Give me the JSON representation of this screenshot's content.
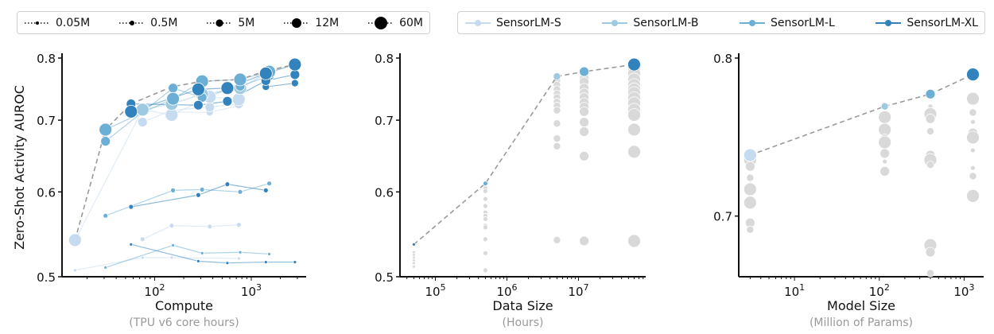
{
  "legend_size": {
    "title": "",
    "items": [
      {
        "label": "0.05M",
        "radius_key": "0.05M"
      },
      {
        "label": "0.5M",
        "radius_key": "0.5M"
      },
      {
        "label": "5M",
        "radius_key": "5M"
      },
      {
        "label": "12M",
        "radius_key": "12M"
      },
      {
        "label": "60M",
        "radius_key": "60M"
      }
    ]
  },
  "legend_model": {
    "items": [
      {
        "label": "SensorLM-S",
        "model": "S"
      },
      {
        "label": "SensorLM-B",
        "model": "B"
      },
      {
        "label": "SensorLM-L",
        "model": "L"
      },
      {
        "label": "SensorLM-XL",
        "model": "XL"
      }
    ]
  },
  "colors": {
    "S": "#c6dbef",
    "B": "#9ecae1",
    "L": "#6baed6",
    "XL": "#3182bd",
    "gray": "#d9d9d9",
    "frontier": "#9a9a9a"
  },
  "chart_data": [
    {
      "type": "scatter",
      "ylabel": "Zero-Shot Activity AUROC",
      "xlabel": "Compute",
      "xlabel_sub": "(TPU v6 core hours)",
      "xscale": "log",
      "yscale": "log",
      "xlim": [
        11,
        3700
      ],
      "ylim": [
        0.5,
        0.8
      ],
      "x_ticks": [
        {
          "base": "10",
          "exp": "2",
          "value": 100
        },
        {
          "base": "10",
          "exp": "3",
          "value": 1000
        }
      ],
      "y_ticks": [
        "0.5",
        "0.6",
        "0.7",
        "0.8"
      ],
      "grid": false,
      "frontier": [
        [
          15,
          0.541
        ],
        [
          31,
          0.686
        ],
        [
          57,
          0.725
        ],
        [
          150,
          0.752
        ],
        [
          310,
          0.761
        ],
        [
          768,
          0.764
        ],
        [
          1416,
          0.778
        ],
        [
          2830,
          0.789
        ]
      ],
      "series": [
        {
          "model": "S",
          "data": "0.05M",
          "points": [
            [
              15,
              0.507
            ],
            [
              75,
              0.521
            ],
            [
              150,
              0.521
            ],
            [
              743,
              0.52
            ]
          ]
        },
        {
          "model": "S",
          "data": "0.5M",
          "points": [
            [
              75,
              0.542
            ],
            [
              150,
              0.558
            ],
            [
              372,
              0.557
            ],
            [
              743,
              0.559
            ]
          ]
        },
        {
          "model": "L",
          "data": "0.05M",
          "points": [
            [
              31,
              0.51
            ],
            [
              155,
              0.535
            ],
            [
              310,
              0.526
            ],
            [
              768,
              0.527
            ],
            [
              1535,
              0.525
            ]
          ]
        },
        {
          "model": "XL",
          "data": "0.05M",
          "points": [
            [
              57,
              0.536
            ],
            [
              283,
              0.517
            ],
            [
              566,
              0.515
            ],
            [
              1416,
              0.516
            ],
            [
              2830,
              0.516
            ]
          ]
        },
        {
          "model": "L",
          "data": "0.5M",
          "points": [
            [
              31,
              0.57
            ],
            [
              155,
              0.602
            ],
            [
              310,
              0.603
            ],
            [
              768,
              0.6
            ],
            [
              1535,
              0.611
            ]
          ]
        },
        {
          "model": "XL",
          "data": "0.5M",
          "points": [
            [
              57,
              0.581
            ],
            [
              283,
              0.596
            ],
            [
              566,
              0.61
            ],
            [
              1416,
              0.602
            ]
          ]
        },
        {
          "model": "S",
          "data": "5M",
          "points": [
            [
              150,
              0.712
            ],
            [
              372,
              0.712
            ],
            [
              743,
              0.722
            ]
          ]
        },
        {
          "model": "S",
          "data": "12M",
          "points": [
            [
              75,
              0.697
            ],
            [
              150,
              0.715
            ],
            [
              372,
              0.72
            ],
            [
              743,
              0.725
            ]
          ]
        },
        {
          "model": "S",
          "data": "60M",
          "points": [
            [
              15,
              0.541
            ],
            [
              75,
              0.716
            ],
            [
              150,
              0.708
            ],
            [
              372,
              0.736
            ],
            [
              743,
              0.732
            ]
          ]
        },
        {
          "model": "B",
          "data": "60M",
          "points": [
            [
              75,
              0.716
            ],
            [
              150,
              0.725
            ],
            [
              310,
              0.74
            ],
            [
              768,
              0.75
            ],
            [
              1535,
              0.777
            ]
          ]
        },
        {
          "model": "L",
          "data": "12M",
          "points": [
            [
              31,
              0.669
            ],
            [
              155,
              0.75
            ],
            [
              310,
              0.735
            ],
            [
              768,
              0.753
            ],
            [
              1535,
              0.77
            ]
          ]
        },
        {
          "model": "L",
          "data": "60M",
          "points": [
            [
              31,
              0.686
            ],
            [
              155,
              0.733
            ],
            [
              310,
              0.761
            ],
            [
              768,
              0.764
            ],
            [
              1535,
              0.777
            ]
          ]
        },
        {
          "model": "XL",
          "data": "5M",
          "points": [
            [
              1416,
              0.752
            ],
            [
              2830,
              0.758
            ]
          ]
        },
        {
          "model": "XL",
          "data": "12M",
          "points": [
            [
              57,
              0.725
            ],
            [
              283,
              0.723
            ],
            [
              566,
              0.729
            ],
            [
              1416,
              0.762
            ],
            [
              2830,
              0.772
            ]
          ]
        },
        {
          "model": "XL",
          "data": "60M",
          "points": [
            [
              57,
              0.713
            ],
            [
              283,
              0.748
            ],
            [
              566,
              0.75
            ],
            [
              1416,
              0.774
            ],
            [
              2830,
              0.789
            ]
          ]
        }
      ]
    },
    {
      "type": "scatter",
      "xlabel": "Data Size",
      "xlabel_sub": "(Hours)",
      "xscale": "log",
      "yscale": "log",
      "xlim": [
        32000,
        87000000
      ],
      "ylim": [
        0.5,
        0.8
      ],
      "x_ticks": [
        {
          "base": "10",
          "exp": "5",
          "value": 100000
        },
        {
          "base": "10",
          "exp": "6",
          "value": 1000000
        },
        {
          "base": "10",
          "exp": "7",
          "value": 10000000
        }
      ],
      "y_ticks": [
        "0.5",
        "0.6",
        "0.7",
        "0.8"
      ],
      "grid": false,
      "frontier": [
        {
          "x": 50000,
          "y": 0.536,
          "model": "XL",
          "data": "0.05M"
        },
        {
          "x": 500000,
          "y": 0.611,
          "model": "L",
          "data": "0.5M"
        },
        {
          "x": 5000000,
          "y": 0.769,
          "model": "B",
          "data": "5M"
        },
        {
          "x": 12000000,
          "y": 0.777,
          "model": "L",
          "data": "12M"
        },
        {
          "x": 60000000,
          "y": 0.789,
          "model": "XL",
          "data": "60M"
        }
      ],
      "others": [
        {
          "x": 50000,
          "data": "0.05M",
          "values": [
            0.527,
            0.524,
            0.521,
            0.518,
            0.515,
            0.511
          ]
        },
        {
          "x": 500000,
          "data": "0.5M",
          "values": [
            0.605,
            0.601,
            0.591,
            0.582,
            0.574,
            0.57,
            0.566,
            0.558,
            0.556,
            0.542,
            0.526,
            0.507
          ]
        },
        {
          "x": 5000000,
          "data": "5M",
          "values": [
            0.762,
            0.755,
            0.748,
            0.741,
            0.735,
            0.728,
            0.722,
            0.715,
            0.695,
            0.673,
            0.662,
            0.541
          ]
        },
        {
          "x": 12000000,
          "data": "12M",
          "values": [
            0.772,
            0.766,
            0.76,
            0.75,
            0.742,
            0.735,
            0.727,
            0.72,
            0.713,
            0.697,
            0.683,
            0.648,
            0.54
          ]
        },
        {
          "x": 60000000,
          "data": "60M",
          "values": [
            0.78,
            0.774,
            0.764,
            0.755,
            0.748,
            0.742,
            0.734,
            0.726,
            0.716,
            0.708,
            0.686,
            0.654,
            0.54
          ]
        }
      ]
    },
    {
      "type": "scatter",
      "xlabel": "Model Size",
      "xlabel_sub": "(Million of Params)",
      "xscale": "log",
      "yscale": "log",
      "xlim": [
        2.2,
        1700
      ],
      "ylim": [
        0.665,
        0.8
      ],
      "x_ticks": [
        {
          "base": "10",
          "exp": "1",
          "value": 10
        },
        {
          "base": "10",
          "exp": "2",
          "value": 100
        },
        {
          "base": "10",
          "exp": "3",
          "value": 1000
        }
      ],
      "y_ticks": [
        "0.7",
        "0.8"
      ],
      "grid": false,
      "frontier": [
        {
          "x": 3,
          "y": 0.737,
          "model": "S",
          "data": "60M"
        },
        {
          "x": 116,
          "y": 0.768,
          "model": "B",
          "data": "5M"
        },
        {
          "x": 400,
          "y": 0.776,
          "model": "L",
          "data": "12M"
        },
        {
          "x": 1270,
          "y": 0.789,
          "model": "XL",
          "data": "60M"
        }
      ],
      "others": [
        {
          "x": 3,
          "values": [
            0.734,
            0.73,
            0.723,
            0.719,
            0.716,
            0.708,
            0.696,
            0.692
          ],
          "data": [
            "60M",
            "12M",
            "5M",
            "0.5M",
            "60M",
            "60M",
            "12M",
            "5M"
          ]
        },
        {
          "x": 116,
          "values": [
            0.761,
            0.754,
            0.753,
            0.748,
            0.745,
            0.738,
            0.733,
            0.727
          ],
          "data": [
            "60M",
            "12M",
            "60M",
            "5M",
            "60M",
            "12M",
            "0.5M",
            "12M"
          ]
        },
        {
          "x": 400,
          "values": [
            0.768,
            0.763,
            0.76,
            0.752,
            0.737,
            0.734,
            0.731,
            0.683,
            0.679,
            0.667
          ],
          "data": [
            "0.5M",
            "60M",
            "12M",
            "5M",
            "12M",
            "60M",
            "5M",
            "60M",
            "12M",
            "5M"
          ]
        },
        {
          "x": 1270,
          "values": [
            0.773,
            0.764,
            0.758,
            0.751,
            0.748,
            0.74,
            0.729,
            0.724,
            0.712
          ],
          "data": [
            "60M",
            "5M",
            "0.5M",
            "12M",
            "60M",
            "0.5M",
            "0.5M",
            "5M",
            "60M"
          ]
        }
      ]
    }
  ]
}
